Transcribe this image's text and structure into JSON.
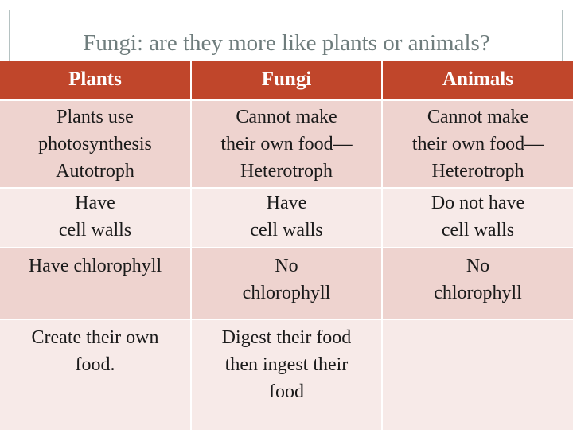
{
  "slide": {
    "title": "Fungi: are they more like plants or animals?"
  },
  "table": {
    "headers": [
      "Plants",
      "Fungi",
      "Animals"
    ],
    "rows": [
      [
        "Plants use\nphotosynthesis\nAutotroph",
        "Cannot make\ntheir own food—\nHeterotroph",
        "Cannot make\ntheir own food—\nHeterotroph"
      ],
      [
        "Have\ncell walls",
        "Have\ncell walls",
        "Do not have\ncell walls"
      ],
      [
        "Have chlorophyll",
        "No\nchlorophyll",
        "No\nchlorophyll"
      ],
      [
        "Create their own\nfood.",
        "Digest their food\nthen ingest their\nfood",
        ""
      ]
    ]
  },
  "colors": {
    "header_bg": "#c0462b",
    "row_dark": "#eed3cf",
    "row_light": "#f7eae8",
    "title_text": "#6f7d7d"
  }
}
